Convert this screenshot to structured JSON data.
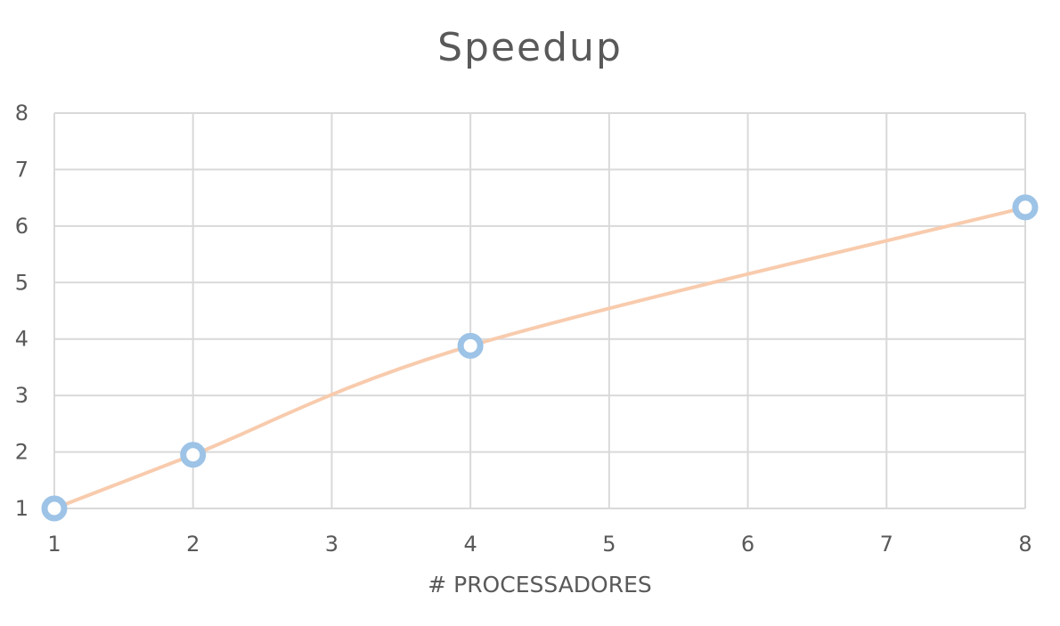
{
  "chart_data": {
    "type": "scatter",
    "title": "Speedup",
    "xlabel": "# PROCESSADORES",
    "ylabel": "",
    "x_categories": [
      "1",
      "2",
      "3",
      "4",
      "5",
      "6",
      "7",
      "8"
    ],
    "ylim": [
      1,
      8
    ],
    "yticks": [
      "1",
      "2",
      "3",
      "4",
      "5",
      "6",
      "7",
      "8"
    ],
    "grid": true,
    "legend": "none",
    "series": [
      {
        "x": [
          1,
          2,
          4,
          8
        ],
        "y": [
          1.0,
          1.95,
          3.88,
          6.33
        ],
        "marker": "circle",
        "line": "smooth",
        "marker_color": "#9dc3e6",
        "line_color": "#f8cbad"
      }
    ]
  }
}
